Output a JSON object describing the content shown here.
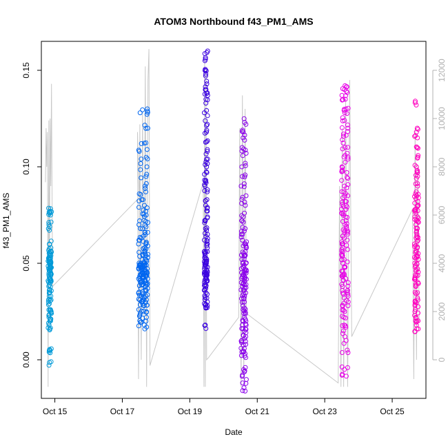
{
  "chart_data": {
    "type": "scatter",
    "title": "ATOM3 Northbound f43_PM1_AMS",
    "xlabel": "Date",
    "ylabel": "f43_PM1_AMS",
    "x_unit": "days in October",
    "xlim": [
      14.6,
      26.0
    ],
    "ylim": [
      -0.02,
      0.165
    ],
    "ylim_right": [
      -0.02,
      0.165
    ],
    "x_ticks": [
      {
        "x": 15,
        "label": "Oct 15"
      },
      {
        "x": 17,
        "label": "Oct 17"
      },
      {
        "x": 19,
        "label": "Oct 19"
      },
      {
        "x": 21,
        "label": "Oct 21"
      },
      {
        "x": 23,
        "label": "Oct 23"
      },
      {
        "x": 25,
        "label": "Oct 25"
      }
    ],
    "y_ticks": [
      {
        "y": 0.0,
        "label": "0.00"
      },
      {
        "y": 0.05,
        "label": "0.05"
      },
      {
        "y": 0.1,
        "label": "0.10"
      },
      {
        "y": 0.15,
        "label": "0.15"
      }
    ],
    "y_ticks_right": [
      {
        "y": 0,
        "label": "0"
      },
      {
        "y": 2000,
        "label": "2000"
      },
      {
        "y": 4000,
        "label": "4000"
      },
      {
        "y": 6000,
        "label": "6000"
      },
      {
        "y": 8000,
        "label": "8000"
      },
      {
        "y": 10000,
        "label": "10000"
      },
      {
        "y": 12000,
        "label": "12000"
      }
    ],
    "right_axis_scale": {
      "value_at_zero": 0,
      "value_per_unit": 80000
    },
    "grid": false,
    "colors": {
      "right_axis": "#b0b0b0",
      "line_series": "#c8c8c8"
    },
    "point_clusters": [
      {
        "x_center": 14.85,
        "x_spread": 0.1,
        "y_values": [
          0.076,
          0.077,
          0.075,
          0.07,
          0.068,
          0.06,
          0.058,
          0.056,
          0.055,
          0.054,
          0.053,
          0.052,
          0.052,
          0.051,
          0.05,
          0.05,
          0.049,
          0.048,
          0.048,
          0.047,
          0.046,
          0.045,
          0.044,
          0.043,
          0.042,
          0.041,
          0.04,
          0.038,
          0.036,
          0.035,
          0.033,
          0.031,
          0.03,
          0.026,
          0.025,
          0.024,
          0.022,
          0.02,
          0.018,
          0.016,
          0.005,
          0.004,
          -0.001
        ],
        "color": "#009ad8"
      },
      {
        "x_center": 17.62,
        "x_spread": 0.28,
        "y_values": [
          0.13,
          0.128,
          0.12,
          0.112,
          0.108,
          0.104,
          0.1,
          0.095,
          0.09,
          0.087,
          0.083,
          0.08,
          0.077,
          0.075,
          0.072,
          0.07,
          0.068,
          0.066,
          0.064,
          0.062,
          0.06,
          0.059,
          0.058,
          0.056,
          0.055,
          0.054,
          0.053,
          0.052,
          0.051,
          0.05,
          0.05,
          0.049,
          0.049,
          0.048,
          0.048,
          0.047,
          0.047,
          0.046,
          0.046,
          0.045,
          0.045,
          0.044,
          0.044,
          0.043,
          0.043,
          0.042,
          0.042,
          0.041,
          0.04,
          0.04,
          0.039,
          0.038,
          0.037,
          0.036,
          0.035,
          0.034,
          0.033,
          0.032,
          0.031,
          0.03,
          0.029,
          0.028,
          0.026,
          0.024,
          0.022,
          0.02,
          0.018,
          0.016
        ],
        "color": "#0066f0"
      },
      {
        "x_center": 19.48,
        "x_spread": 0.1,
        "y_values": [
          0.16,
          0.155,
          0.15,
          0.148,
          0.143,
          0.14,
          0.137,
          0.133,
          0.128,
          0.122,
          0.118,
          0.113,
          0.108,
          0.104,
          0.1,
          0.097,
          0.093,
          0.09,
          0.087,
          0.083,
          0.08,
          0.077,
          0.074,
          0.071,
          0.068,
          0.065,
          0.062,
          0.06,
          0.058,
          0.056,
          0.054,
          0.053,
          0.052,
          0.051,
          0.05,
          0.049,
          0.048,
          0.047,
          0.046,
          0.045,
          0.044,
          0.043,
          0.042,
          0.041,
          0.04,
          0.038,
          0.036,
          0.034,
          0.032,
          0.03,
          0.028,
          0.027,
          0.018
        ],
        "color": "#3a00e0"
      },
      {
        "x_center": 20.6,
        "x_spread": 0.16,
        "y_values": [
          0.123,
          0.118,
          0.115,
          0.11,
          0.107,
          0.1,
          0.095,
          0.09,
          0.085,
          0.08,
          0.076,
          0.072,
          0.068,
          0.065,
          0.062,
          0.06,
          0.058,
          0.056,
          0.054,
          0.052,
          0.05,
          0.049,
          0.048,
          0.046,
          0.045,
          0.044,
          0.043,
          0.042,
          0.04,
          0.039,
          0.038,
          0.036,
          0.034,
          0.032,
          0.03,
          0.028,
          0.026,
          0.024,
          0.022,
          0.02,
          0.018,
          0.016,
          0.014,
          0.012,
          0.01,
          0.008,
          0.006,
          0.004,
          0.002,
          -0.004,
          -0.008,
          -0.012,
          -0.016
        ],
        "color": "#8a00ea"
      },
      {
        "x_center": 23.6,
        "x_spread": 0.2,
        "y_values": [
          0.142,
          0.14,
          0.137,
          0.135,
          0.13,
          0.128,
          0.124,
          0.12,
          0.117,
          0.114,
          0.11,
          0.107,
          0.104,
          0.1,
          0.097,
          0.094,
          0.09,
          0.087,
          0.085,
          0.082,
          0.08,
          0.078,
          0.076,
          0.074,
          0.072,
          0.07,
          0.068,
          0.066,
          0.064,
          0.062,
          0.06,
          0.058,
          0.056,
          0.054,
          0.052,
          0.05,
          0.048,
          0.046,
          0.044,
          0.042,
          0.04,
          0.038,
          0.036,
          0.034,
          0.032,
          0.03,
          0.028,
          0.025,
          0.022,
          0.018,
          0.015,
          0.01,
          0.005,
          -0.005,
          -0.008
        ],
        "color": "#e600e6"
      },
      {
        "x_center": 25.72,
        "x_spread": 0.12,
        "y_values": [
          0.132,
          0.12,
          0.115,
          0.11,
          0.105,
          0.1,
          0.097,
          0.094,
          0.09,
          0.087,
          0.084,
          0.082,
          0.08,
          0.078,
          0.076,
          0.074,
          0.072,
          0.07,
          0.068,
          0.066,
          0.064,
          0.062,
          0.06,
          0.058,
          0.056,
          0.054,
          0.052,
          0.05,
          0.048,
          0.046,
          0.044,
          0.042,
          0.04,
          0.038,
          0.035,
          0.032,
          0.03,
          0.028,
          0.025,
          0.022,
          0.02,
          0.018,
          0.016
        ],
        "color": "#ff00bf"
      }
    ],
    "line_path": [
      {
        "x": 14.72,
        "y": 0.092
      },
      {
        "x": 14.74,
        "y": 0.12
      },
      {
        "x": 14.76,
        "y": 0.1
      },
      {
        "x": 14.78,
        "y": 0.118
      },
      {
        "x": 14.8,
        "y": -0.014
      },
      {
        "x": 14.82,
        "y": 0.124
      },
      {
        "x": 14.84,
        "y": 0.04
      },
      {
        "x": 14.86,
        "y": 0.125
      },
      {
        "x": 14.88,
        "y": 0.09
      },
      {
        "x": 14.9,
        "y": 0.143
      },
      {
        "x": 14.93,
        "y": 0.038
      },
      {
        "x": 17.5,
        "y": 0.084
      },
      {
        "x": 17.45,
        "y": 0.118
      },
      {
        "x": 17.48,
        "y": -0.01
      },
      {
        "x": 17.52,
        "y": 0.122
      },
      {
        "x": 17.56,
        "y": 0.0
      },
      {
        "x": 17.6,
        "y": 0.128
      },
      {
        "x": 17.64,
        "y": 0.02
      },
      {
        "x": 17.68,
        "y": 0.152
      },
      {
        "x": 17.72,
        "y": -0.014
      },
      {
        "x": 17.76,
        "y": 0.145
      },
      {
        "x": 17.79,
        "y": 0.161
      },
      {
        "x": 17.82,
        "y": -0.003
      },
      {
        "x": 19.4,
        "y": 0.092
      },
      {
        "x": 19.42,
        "y": -0.014
      },
      {
        "x": 19.44,
        "y": 0.155
      },
      {
        "x": 19.46,
        "y": -0.014
      },
      {
        "x": 19.48,
        "y": 0.15
      },
      {
        "x": 19.5,
        "y": 0.0
      },
      {
        "x": 19.55,
        "y": 0.001
      },
      {
        "x": 20.45,
        "y": 0.022
      },
      {
        "x": 20.48,
        "y": 0.12
      },
      {
        "x": 20.52,
        "y": -0.014
      },
      {
        "x": 20.56,
        "y": 0.137
      },
      {
        "x": 20.6,
        "y": -0.01
      },
      {
        "x": 20.64,
        "y": 0.13
      },
      {
        "x": 20.68,
        "y": 0.024
      },
      {
        "x": 23.4,
        "y": -0.012
      },
      {
        "x": 23.44,
        "y": 0.09
      },
      {
        "x": 23.48,
        "y": -0.014
      },
      {
        "x": 23.52,
        "y": 0.12
      },
      {
        "x": 23.56,
        "y": -0.014
      },
      {
        "x": 23.62,
        "y": 0.135
      },
      {
        "x": 23.68,
        "y": -0.014
      },
      {
        "x": 23.74,
        "y": 0.145
      },
      {
        "x": 23.8,
        "y": 0.012
      },
      {
        "x": 25.6,
        "y": 0.078
      },
      {
        "x": 25.64,
        "y": -0.01
      },
      {
        "x": 25.68,
        "y": 0.12
      },
      {
        "x": 25.72,
        "y": 0.0
      },
      {
        "x": 25.76,
        "y": 0.1
      },
      {
        "x": 25.8,
        "y": 0.02
      }
    ]
  }
}
